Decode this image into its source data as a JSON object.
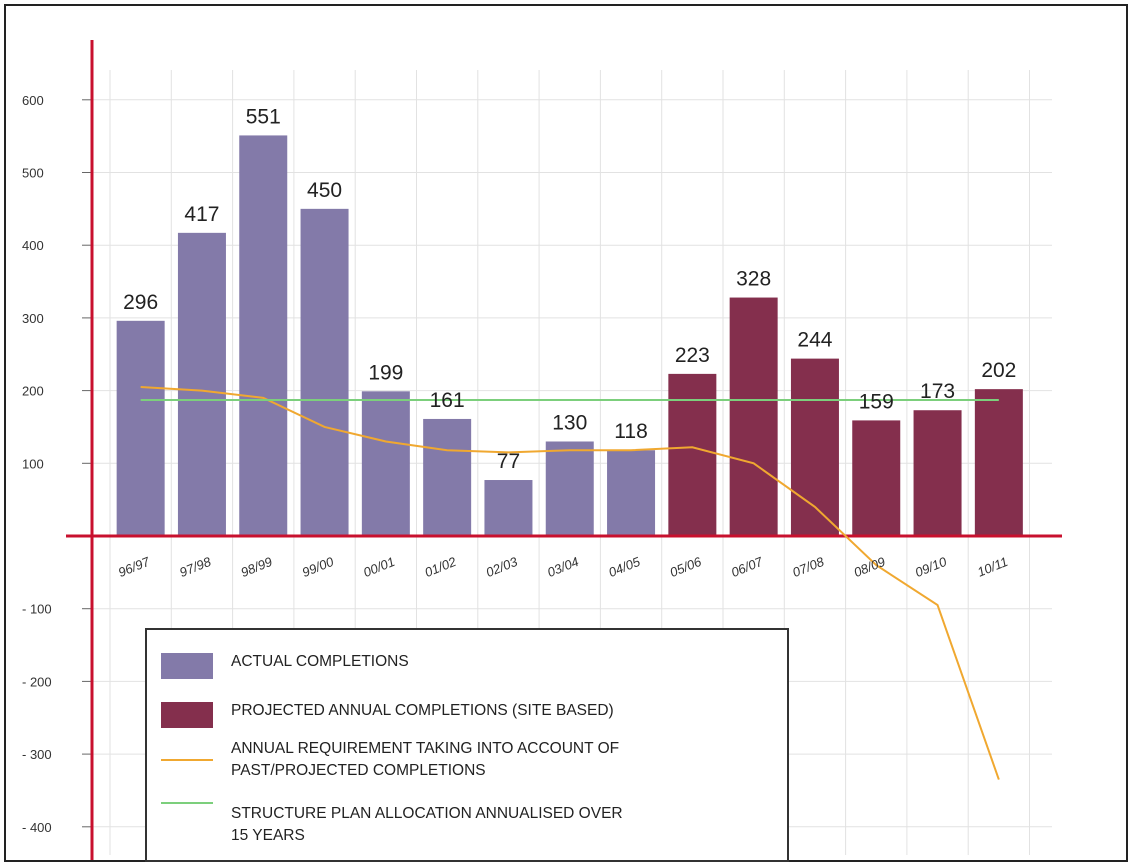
{
  "chart_data": {
    "type": "bar",
    "categories": [
      "96/97",
      "97/98",
      "98/99",
      "99/00",
      "00/01",
      "01/02",
      "02/03",
      "03/04",
      "04/05",
      "05/06",
      "06/07",
      "07/08",
      "08/09",
      "09/10",
      "10/11"
    ],
    "series": [
      {
        "name": "ACTUAL COMPLETIONS",
        "kind": "bar",
        "color": "#837aa9",
        "values": [
          296,
          417,
          551,
          450,
          199,
          161,
          77,
          130,
          118,
          null,
          null,
          null,
          null,
          null,
          null
        ]
      },
      {
        "name": "PROJECTED ANNUAL COMPLETIONS (SITE BASED)",
        "kind": "bar",
        "color": "#842f4d",
        "values": [
          null,
          null,
          null,
          null,
          null,
          null,
          null,
          null,
          null,
          223,
          328,
          244,
          159,
          173,
          202
        ]
      },
      {
        "name": "ANNUAL REQUIREMENT TAKING INTO ACCOUNT OF PAST/PROJECTED COMPLETIONS",
        "kind": "line",
        "color": "#f0a830",
        "values": [
          205,
          200,
          190,
          150,
          130,
          118,
          115,
          118,
          118,
          122,
          100,
          40,
          -40,
          -95,
          -335
        ]
      },
      {
        "name": "STRUCTURE PLAN ALLOCATION ANNUALISED OVER 15 YEARS",
        "kind": "line",
        "color": "#7ccf7c",
        "values": [
          187,
          187,
          187,
          187,
          187,
          187,
          187,
          187,
          187,
          187,
          187,
          187,
          187,
          187,
          187
        ]
      }
    ],
    "data_labels": [
      "296",
      "417",
      "551",
      "450",
      "199",
      "161",
      "77",
      "130",
      "118",
      "223",
      "328",
      "244",
      "159",
      "173",
      "202"
    ],
    "y_ticks": [
      {
        "value": 600,
        "label": "600"
      },
      {
        "value": 500,
        "label": "500"
      },
      {
        "value": 400,
        "label": "400"
      },
      {
        "value": 300,
        "label": "300"
      },
      {
        "value": 200,
        "label": "200"
      },
      {
        "value": 100,
        "label": "100"
      },
      {
        "value": -100,
        "label": "- 100"
      },
      {
        "value": -200,
        "label": "- 200"
      },
      {
        "value": -300,
        "label": "- 300"
      },
      {
        "value": -400,
        "label": "- 400"
      }
    ],
    "ylim": [
      -420,
      660
    ],
    "grid": true,
    "legend_position": "bottom-left",
    "title": "",
    "xlabel": "",
    "ylabel": "",
    "axis_color": "#c8102e"
  },
  "legend": {
    "actual": "ACTUAL COMPLETIONS",
    "projected": "PROJECTED ANNUAL COMPLETIONS (SITE BASED)",
    "requirement_line1": "ANNUAL REQUIREMENT TAKING INTO ACCOUNT OF",
    "requirement_line2": "PAST/PROJECTED COMPLETIONS",
    "structure_line1": "STRUCTURE PLAN ALLOCATION ANNUALISED OVER",
    "structure_line2": "15 YEARS"
  }
}
